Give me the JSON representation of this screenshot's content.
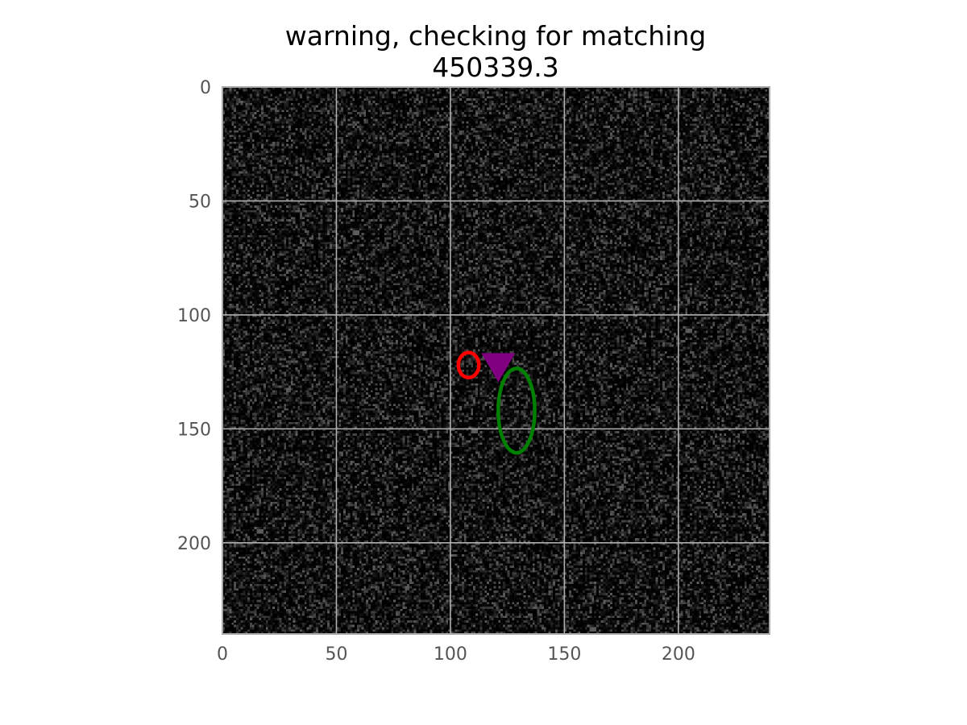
{
  "chart_data": {
    "type": "heatmap",
    "title_lines": [
      "warning, checking for matching",
      "450339.3"
    ],
    "xlabel": "",
    "ylabel": "",
    "image_size": [
      240,
      240
    ],
    "xlim": [
      0,
      240
    ],
    "ylim": [
      240,
      0
    ],
    "y_inverted": true,
    "xticks": [
      0,
      50,
      100,
      150,
      200
    ],
    "yticks": [
      0,
      50,
      100,
      150,
      200
    ],
    "grid": true,
    "colormap": "gray",
    "background_noise": "dark random speckle",
    "markers": [
      {
        "shape": "circle-outline",
        "color": "#ff0000",
        "x": 108,
        "y": 122,
        "rx": 4.5,
        "ry": 5.5
      },
      {
        "shape": "triangle-down",
        "color": "#800080",
        "x": 121,
        "y": 121
      },
      {
        "shape": "ellipse-outline",
        "color": "#008000",
        "x": 129,
        "y": 142,
        "rx": 8,
        "ry": 18.5
      }
    ]
  }
}
